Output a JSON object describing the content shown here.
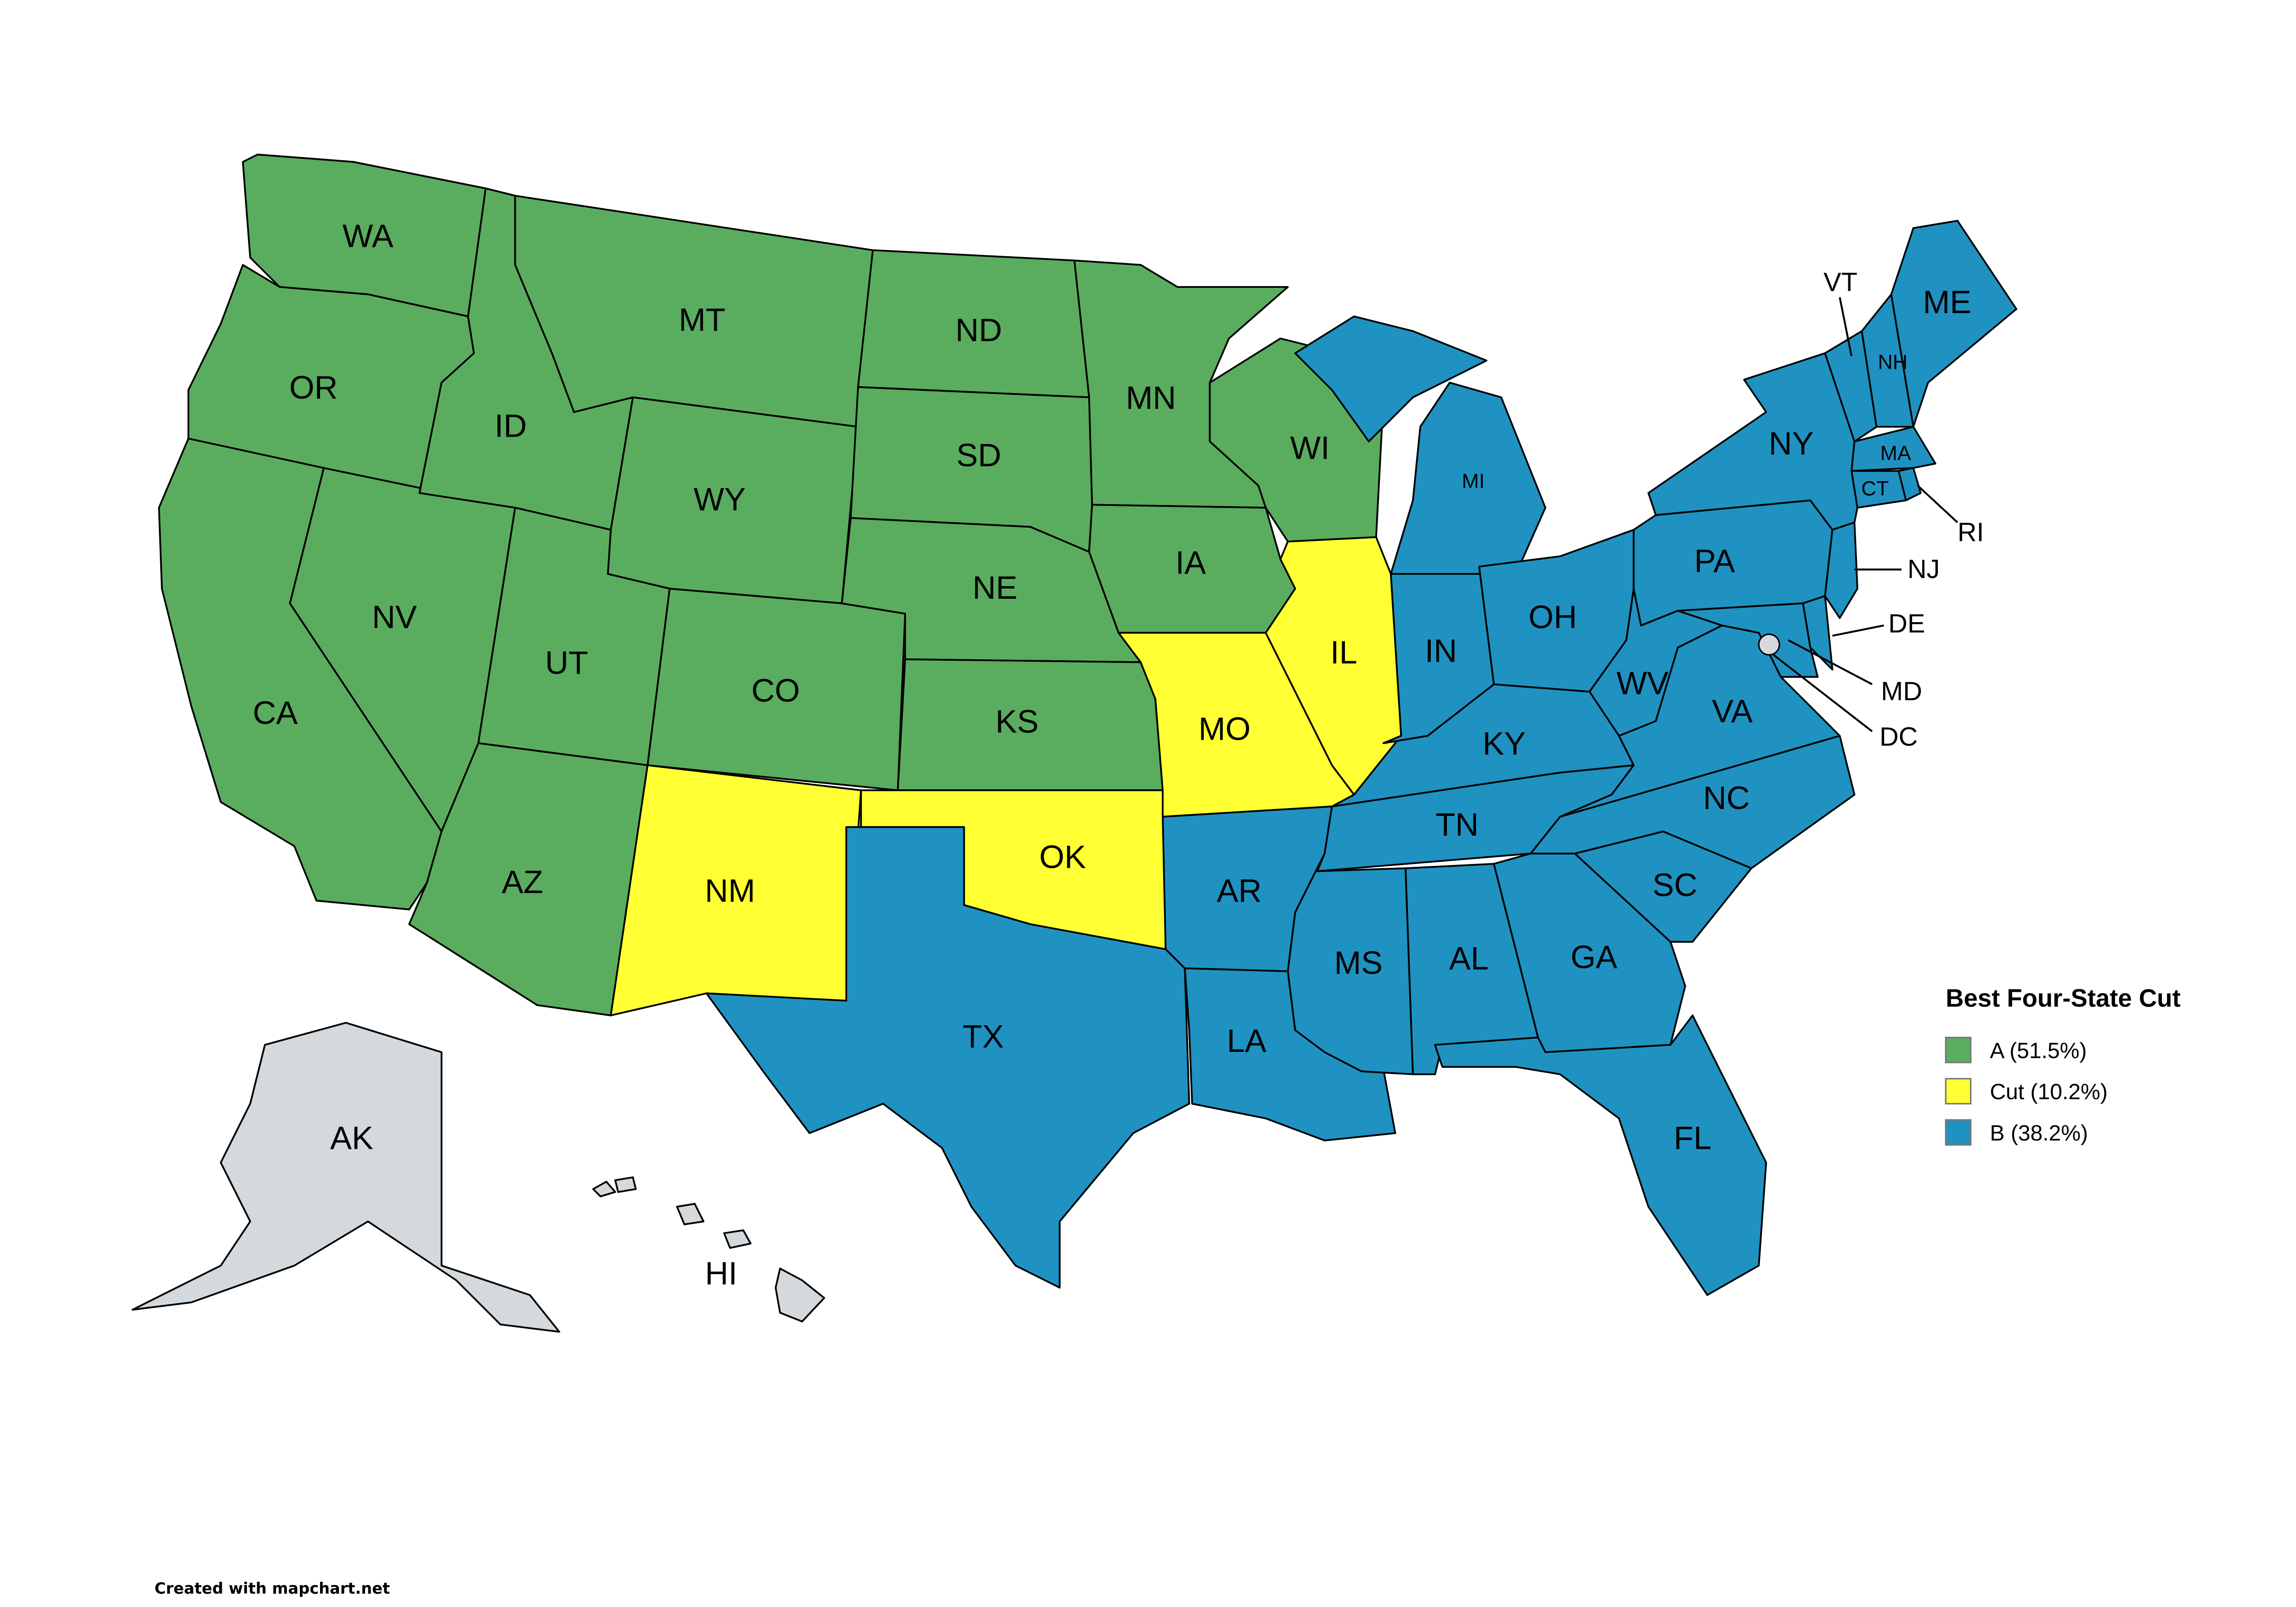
{
  "legend": {
    "title": "Best Four-State Cut",
    "items": [
      {
        "key": "A",
        "label": "A (51.5%)",
        "color": "#5aad5f"
      },
      {
        "key": "Cut",
        "label": "Cut (10.2%)",
        "color": "#ffff33"
      },
      {
        "key": "B",
        "label": "B (38.2%)",
        "color": "#1f92c2"
      }
    ]
  },
  "unassigned_color": "#d3d9dd",
  "credit": "Created with mapchart.net",
  "states": [
    {
      "abbr": "WA",
      "group": "A"
    },
    {
      "abbr": "OR",
      "group": "A"
    },
    {
      "abbr": "CA",
      "group": "A"
    },
    {
      "abbr": "NV",
      "group": "A"
    },
    {
      "abbr": "ID",
      "group": "A"
    },
    {
      "abbr": "MT",
      "group": "A"
    },
    {
      "abbr": "WY",
      "group": "A"
    },
    {
      "abbr": "UT",
      "group": "A"
    },
    {
      "abbr": "CO",
      "group": "A"
    },
    {
      "abbr": "AZ",
      "group": "A"
    },
    {
      "abbr": "ND",
      "group": "A"
    },
    {
      "abbr": "SD",
      "group": "A"
    },
    {
      "abbr": "NE",
      "group": "A"
    },
    {
      "abbr": "KS",
      "group": "A"
    },
    {
      "abbr": "MN",
      "group": "A"
    },
    {
      "abbr": "IA",
      "group": "A"
    },
    {
      "abbr": "WI",
      "group": "A"
    },
    {
      "abbr": "NM",
      "group": "Cut"
    },
    {
      "abbr": "OK",
      "group": "Cut"
    },
    {
      "abbr": "MO",
      "group": "Cut"
    },
    {
      "abbr": "IL",
      "group": "Cut"
    },
    {
      "abbr": "TX",
      "group": "B"
    },
    {
      "abbr": "AR",
      "group": "B"
    },
    {
      "abbr": "LA",
      "group": "B"
    },
    {
      "abbr": "MS",
      "group": "B"
    },
    {
      "abbr": "AL",
      "group": "B"
    },
    {
      "abbr": "TN",
      "group": "B"
    },
    {
      "abbr": "KY",
      "group": "B"
    },
    {
      "abbr": "IN",
      "group": "B"
    },
    {
      "abbr": "MI",
      "group": "B"
    },
    {
      "abbr": "OH",
      "group": "B"
    },
    {
      "abbr": "GA",
      "group": "B"
    },
    {
      "abbr": "FL",
      "group": "B"
    },
    {
      "abbr": "SC",
      "group": "B"
    },
    {
      "abbr": "NC",
      "group": "B"
    },
    {
      "abbr": "VA",
      "group": "B"
    },
    {
      "abbr": "WV",
      "group": "B"
    },
    {
      "abbr": "PA",
      "group": "B"
    },
    {
      "abbr": "NY",
      "group": "B"
    },
    {
      "abbr": "NJ",
      "group": "B"
    },
    {
      "abbr": "DE",
      "group": "B"
    },
    {
      "abbr": "MD",
      "group": "B"
    },
    {
      "abbr": "DC",
      "group": "B"
    },
    {
      "abbr": "VT",
      "group": "B"
    },
    {
      "abbr": "NH",
      "group": "B"
    },
    {
      "abbr": "ME",
      "group": "B"
    },
    {
      "abbr": "MA",
      "group": "B"
    },
    {
      "abbr": "CT",
      "group": "B"
    },
    {
      "abbr": "RI",
      "group": "B"
    },
    {
      "abbr": "AK",
      "group": null
    },
    {
      "abbr": "HI",
      "group": null
    }
  ]
}
